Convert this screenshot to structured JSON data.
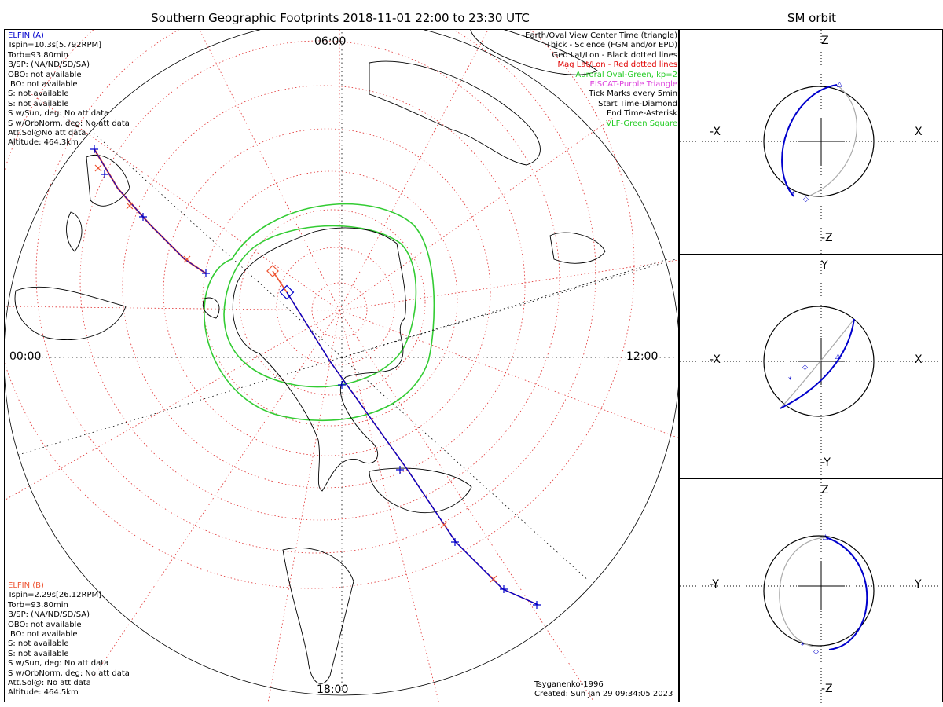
{
  "title": "Southern Geographic Footprints 2018-11-01 22:00 to 23:30 UTC",
  "sm_title": "SM orbit",
  "hours": {
    "top": "06:00",
    "left": "00:00",
    "right": "12:00",
    "bottom": "18:00"
  },
  "info_a": {
    "name": "ELFIN (A)",
    "lines": [
      "Tspin=10.3s[5.792RPM]",
      "Torb=93.80min",
      "B/SP: (NA/ND/SD/SA)",
      "OBO: not available",
      "IBO: not available",
      "S: not available",
      "S: not available",
      "S w/Sun, deg: No att data",
      "S w/OrbNorm, deg: No att data",
      "Att.Sol@No att data",
      "Altitude: 464.3km"
    ]
  },
  "info_b": {
    "name": "ELFIN (B)",
    "lines": [
      "Tspin=2.29s[26.12RPM]",
      "Torb=93.80min",
      "B/SP: (NA/ND/SD/SA)",
      "OBO: not available",
      "IBO: not available",
      "S: not available",
      "S: not available",
      "S w/Sun, deg: No att data",
      "S w/OrbNorm, deg: No att data",
      "Att.Sol@: No att data",
      "Altitude: 464.5km"
    ]
  },
  "legend": [
    {
      "text": "Earth/Oval View Center Time (triangle)",
      "color": "#000000"
    },
    {
      "text": "Thick - Science (FGM and/or EPD)",
      "color": "#000000"
    },
    {
      "text": "Geo Lat/Lon - Black dotted lines",
      "color": "#000000"
    },
    {
      "text": "Mag Lat/Lon - Red dotted lines",
      "color": "#e00000"
    },
    {
      "text": "Auroral Oval-Green, kp=2",
      "color": "#22cc22"
    },
    {
      "text": "EISCAT-Purple Triangle",
      "color": "#dd44dd"
    },
    {
      "text": "Tick Marks every 5min",
      "color": "#000000"
    },
    {
      "text": "Start Time-Diamond",
      "color": "#000000"
    },
    {
      "text": "End Time-Asterisk",
      "color": "#000000"
    },
    {
      "text": "VLF-Green Square",
      "color": "#22cc22"
    }
  ],
  "footer": {
    "model": "Tsyganenko-1996",
    "created": "Created: Sun Jan 29 09:34:05 2023"
  },
  "sm_panels": [
    {
      "top": "Z",
      "bottom": "-Z",
      "left": "-X",
      "right": "X"
    },
    {
      "top": "Y",
      "bottom": "-Y",
      "left": "-X",
      "right": "X"
    },
    {
      "top": "Z",
      "bottom": "-Z",
      "left": "-Y",
      "right": "Y"
    }
  ],
  "colors": {
    "sat_a": "#0000cc",
    "sat_b": "#ee5533",
    "oval": "#33cc33",
    "mag_grid": "#e03030",
    "orbit_gray": "#aaaaaa"
  }
}
